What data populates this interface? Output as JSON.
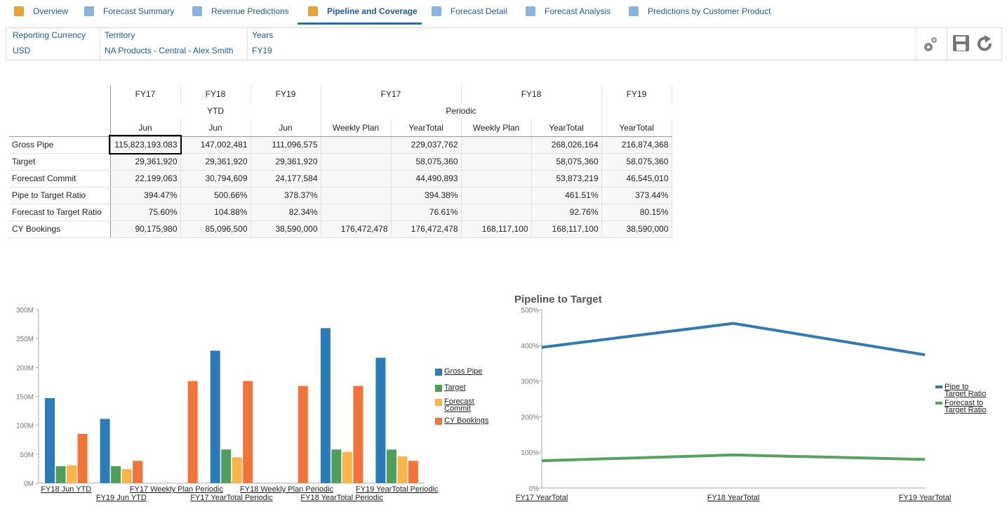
{
  "tabs": [
    "Overview",
    "Forecast Summary",
    "Revenue Predictions",
    "Pipeline and Coverage",
    "Forecast Detail",
    "Forecast Analysis",
    "Predictions by Customer Product"
  ],
  "filters": [
    {
      "label": "Reporting Currency",
      "value": "USD"
    },
    {
      "label": "Territory",
      "value": "NA Products - Central - Alex Smith"
    },
    {
      "label": "Years",
      "value": "FY19"
    }
  ],
  "table": {
    "header": [
      [
        "FY17",
        "FY18",
        "FY19",
        "FY17",
        "FY18",
        "FY19"
      ],
      [
        "YTD",
        "Periodic"
      ],
      [
        "Jun",
        "Jun",
        "Jun",
        "Weekly Plan",
        "YearTotal",
        "Weekly Plan",
        "YearTotal",
        "YearTotal"
      ]
    ],
    "rows": [
      {
        "label": "Gross Pipe",
        "cells": [
          "115,823,193.083",
          "147,002,481",
          "111,096,575",
          null,
          "229,037,762",
          null,
          "268,026,164",
          "216,874,368"
        ]
      },
      {
        "label": "Target",
        "cells": [
          "29,361,920",
          "29,361,920",
          "29,361,920",
          null,
          "58,075,360",
          null,
          "58,075,360",
          "58,075,360"
        ]
      },
      {
        "label": "Forecast Commit",
        "cells": [
          "22,199,063",
          "30,794,609",
          "24,177,584",
          null,
          "44,490,893",
          null,
          "53,873,219",
          "46,545,010"
        ]
      },
      {
        "label": "Pipe to Target Ratio",
        "cells": [
          "394.47%",
          "500.66%",
          "378.37%",
          null,
          "394.38%",
          null,
          "461.51%",
          "373.44%"
        ]
      },
      {
        "label": "Forecast to Target Ratio",
        "cells": [
          "75.60%",
          "104.88%",
          "82.34%",
          null,
          "76.61%",
          null,
          "92.76%",
          "80.15%"
        ]
      },
      {
        "label": "CY Bookings",
        "cells": [
          "90,175,980",
          "85,096,500",
          "38,590,000",
          "176,472,478",
          "176,472,478",
          "168,117,100",
          "168,117,100",
          "38,590,000"
        ]
      }
    ]
  },
  "chart_data": [
    {
      "type": "bar",
      "categories": [
        "FY18 Jun YTD",
        "FY19 Jun YTD",
        "FY17 Weekly Plan Periodic",
        "FY17 YearTotal Periodic",
        "FY18 Weekly Plan Periodic",
        "FY18 YearTotal Periodic",
        "FY19 YearTotal Periodic"
      ],
      "series": [
        {
          "name": "Gross Pipe",
          "color": "#2b7bb9",
          "values": [
            147002481,
            111096575,
            null,
            229037762,
            null,
            268026164,
            216874368
          ]
        },
        {
          "name": "Target",
          "color": "#4f9e5c",
          "values": [
            29361920,
            29361920,
            null,
            58075360,
            null,
            58075360,
            58075360
          ]
        },
        {
          "name": "Forecast Commit",
          "color": "#fbb44a",
          "values": [
            30794609,
            24177584,
            null,
            44490893,
            null,
            53873219,
            46545010
          ]
        },
        {
          "name": "CY Bookings",
          "color": "#f2743b",
          "values": [
            85096500,
            38590000,
            176472478,
            176472478,
            168117100,
            168117100,
            38590000
          ]
        }
      ],
      "ylim": [
        0,
        300000000
      ],
      "yticks": [
        {
          "value": 0,
          "label": "0M"
        },
        {
          "value": 50000000,
          "label": "50M"
        },
        {
          "value": 100000000,
          "label": "100M"
        },
        {
          "value": 150000000,
          "label": "150M"
        },
        {
          "value": 200000000,
          "label": "200M"
        },
        {
          "value": 250000000,
          "label": "250M"
        },
        {
          "value": 300000000,
          "label": "300M"
        }
      ]
    },
    {
      "type": "line",
      "title": "Pipeline to Target",
      "categories": [
        "FY17 YearTotal",
        "FY18 YearTotal",
        "FY19 YearTotal"
      ],
      "series": [
        {
          "name": "Pipe to Target Ratio",
          "color": "#2f7ab5",
          "values": [
            394.38,
            461.51,
            373.44
          ]
        },
        {
          "name": "Forecast to Target Ratio",
          "color": "#55a35e",
          "values": [
            76.61,
            92.76,
            80.15
          ]
        }
      ],
      "ylim": [
        0,
        500
      ],
      "yticks": [
        {
          "value": 0,
          "label": "0%"
        },
        {
          "value": 100,
          "label": "100%"
        },
        {
          "value": 200,
          "label": "200%"
        },
        {
          "value": 300,
          "label": "300%"
        },
        {
          "value": 400,
          "label": "400%"
        },
        {
          "value": 500,
          "label": "500%"
        }
      ]
    }
  ]
}
